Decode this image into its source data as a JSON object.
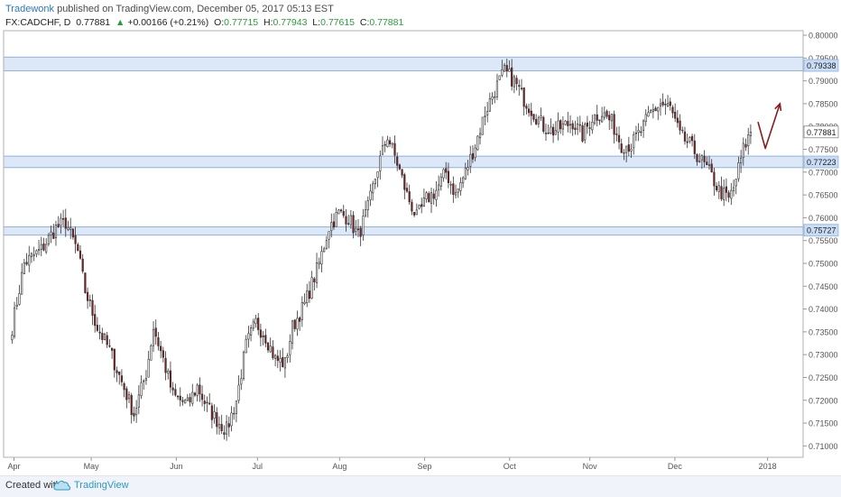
{
  "header": {
    "author": "Tradewonk",
    "published": " published on TradingView.com, December 05, 2017 05:13 EST",
    "symbol": "FX:CADCHF, D",
    "last": "0.77881",
    "change_arrow": "▲",
    "change": "+0.00166 (+0.21%)",
    "o_label": "O:",
    "o_val": "0.77715",
    "h_label": "H:",
    "h_val": "0.77943",
    "l_label": "L:",
    "l_val": "0.77615",
    "c_label": "C:",
    "c_val": "0.77881"
  },
  "footer": {
    "created_with": "Created with",
    "brand": "TradingView"
  },
  "colors": {
    "up_fill": "#ffffff",
    "down_fill": "#8b1a1a",
    "zone_fill": "#dce8f7",
    "zone_stroke": "#8fb2e0",
    "arrow": "#8b1a1a",
    "axis_text": "#555555"
  },
  "chart_data": {
    "type": "candlestick",
    "symbol": "FX:CADCHF",
    "timeframe": "D",
    "ylim": [
      0.7075,
      0.801
    ],
    "y_ticks": [
      "0.80000",
      "0.79500",
      "0.79000",
      "0.78500",
      "0.78000",
      "0.77500",
      "0.77000",
      "0.76500",
      "0.76000",
      "0.75500",
      "0.75000",
      "0.74500",
      "0.74000",
      "0.73500",
      "0.73000",
      "0.72500",
      "0.72000",
      "0.71500",
      "0.71000"
    ],
    "x_ticks": [
      "Apr",
      "May",
      "Jun",
      "Jul",
      "Aug",
      "Sep",
      "Oct",
      "Nov",
      "Dec",
      "2018"
    ],
    "price_labels": [
      {
        "value": 0.79338,
        "text": "0.79338",
        "style": "zone"
      },
      {
        "value": 0.77881,
        "text": "0.77881",
        "style": "last"
      },
      {
        "value": 0.77223,
        "text": "0.77223",
        "style": "zone"
      },
      {
        "value": 0.75727,
        "text": "0.75727",
        "style": "zone"
      }
    ],
    "zones": [
      {
        "low": 0.7922,
        "high": 0.7952
      },
      {
        "low": 0.771,
        "high": 0.7735
      },
      {
        "low": 0.7562,
        "high": 0.758
      }
    ],
    "anchors": [
      [
        0,
        0.736
      ],
      [
        5,
        0.75
      ],
      [
        12,
        0.753
      ],
      [
        18,
        0.7578
      ],
      [
        22,
        0.759
      ],
      [
        27,
        0.7525
      ],
      [
        30,
        0.744
      ],
      [
        35,
        0.736
      ],
      [
        40,
        0.731
      ],
      [
        45,
        0.724
      ],
      [
        50,
        0.717
      ],
      [
        55,
        0.726
      ],
      [
        58,
        0.736
      ],
      [
        62,
        0.729
      ],
      [
        66,
        0.721
      ],
      [
        72,
        0.719
      ],
      [
        76,
        0.723
      ],
      [
        80,
        0.7185
      ],
      [
        85,
        0.715
      ],
      [
        88,
        0.7135
      ],
      [
        92,
        0.72
      ],
      [
        96,
        0.732
      ],
      [
        100,
        0.737
      ],
      [
        104,
        0.734
      ],
      [
        108,
        0.729
      ],
      [
        112,
        0.728
      ],
      [
        115,
        0.736
      ],
      [
        120,
        0.741
      ],
      [
        126,
        0.75
      ],
      [
        130,
        0.758
      ],
      [
        134,
        0.761
      ],
      [
        138,
        0.76
      ],
      [
        142,
        0.756
      ],
      [
        146,
        0.762
      ],
      [
        150,
        0.771
      ],
      [
        154,
        0.778
      ],
      [
        158,
        0.772
      ],
      [
        162,
        0.765
      ],
      [
        166,
        0.76
      ],
      [
        170,
        0.764
      ],
      [
        174,
        0.766
      ],
      [
        178,
        0.77
      ],
      [
        182,
        0.765
      ],
      [
        186,
        0.77
      ],
      [
        190,
        0.776
      ],
      [
        194,
        0.783
      ],
      [
        198,
        0.788
      ],
      [
        202,
        0.792
      ],
      [
        206,
        0.79
      ],
      [
        210,
        0.786
      ],
      [
        214,
        0.783
      ],
      [
        218,
        0.78
      ],
      [
        222,
        0.779
      ],
      [
        226,
        0.78
      ],
      [
        230,
        0.781
      ],
      [
        234,
        0.778
      ],
      [
        238,
        0.782
      ],
      [
        242,
        0.783
      ],
      [
        246,
        0.781
      ],
      [
        250,
        0.776
      ],
      [
        254,
        0.776
      ],
      [
        258,
        0.779
      ],
      [
        262,
        0.783
      ],
      [
        266,
        0.785
      ],
      [
        270,
        0.784
      ],
      [
        274,
        0.778
      ],
      [
        278,
        0.776
      ],
      [
        282,
        0.773
      ],
      [
        286,
        0.77
      ],
      [
        290,
        0.766
      ],
      [
        294,
        0.764
      ],
      [
        296,
        0.7665
      ],
      [
        300,
        0.775
      ],
      [
        303,
        0.7788
      ]
    ],
    "annotation": {
      "type": "arrow",
      "description": "zig-zag arrow: down then up",
      "points": [
        [
          306,
          0.781
        ],
        [
          309,
          0.7752
        ],
        [
          315,
          0.785
        ]
      ]
    }
  }
}
